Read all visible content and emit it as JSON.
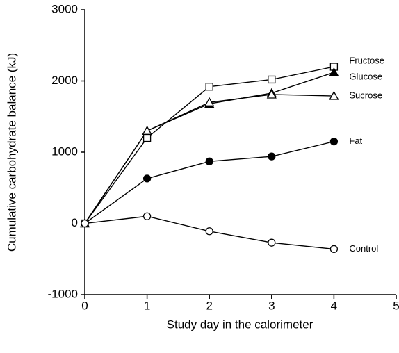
{
  "chart_data": {
    "type": "line",
    "x_label": "Study day in the calorimeter",
    "y_label": "Cumulative carbohydrate balance (kJ)",
    "x": [
      0,
      1,
      2,
      3,
      4
    ],
    "xlim": [
      0,
      5
    ],
    "xticks": [
      0,
      1,
      2,
      3,
      4,
      5
    ],
    "ylim": [
      -1000,
      3000
    ],
    "yticks": [
      -1000,
      0,
      1000,
      2000,
      3000
    ],
    "grid": false,
    "series": [
      {
        "name": "Fructose",
        "color": "#000000",
        "marker": "square",
        "filled": false,
        "values": [
          0,
          1200,
          1920,
          2020,
          2200
        ]
      },
      {
        "name": "Glucose",
        "color": "#000000",
        "marker": "triangle",
        "filled": true,
        "values": [
          0,
          1300,
          1680,
          1830,
          2120
        ]
      },
      {
        "name": "Sucrose",
        "color": "#000000",
        "marker": "triangle",
        "filled": false,
        "values": [
          0,
          1300,
          1700,
          1810,
          1790
        ]
      },
      {
        "name": "Fat",
        "color": "#000000",
        "marker": "circle",
        "filled": true,
        "values": [
          0,
          630,
          870,
          940,
          1150
        ]
      },
      {
        "name": "Control",
        "color": "#000000",
        "marker": "circle",
        "filled": false,
        "values": [
          0,
          100,
          -110,
          -270,
          -360
        ]
      }
    ]
  }
}
